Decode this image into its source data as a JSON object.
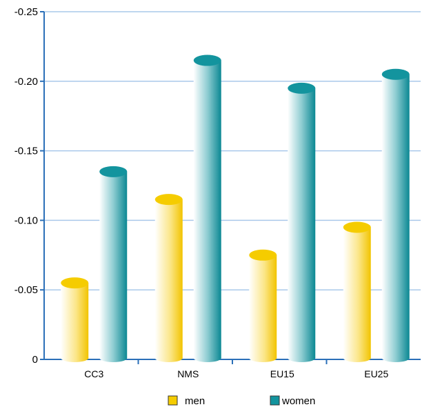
{
  "chart_data": {
    "type": "bar",
    "categories": [
      "CC3",
      "NMS",
      "EU15",
      "EU25"
    ],
    "series": [
      {
        "name": "men",
        "values": [
          -0.055,
          -0.115,
          -0.075,
          -0.095
        ]
      },
      {
        "name": "women",
        "values": [
          -0.135,
          -0.215,
          -0.195,
          -0.205
        ]
      }
    ],
    "yticks": [
      "0",
      "-0.05",
      "-0.10",
      "-0.15",
      "-0.20",
      "-0.25"
    ],
    "ytick_values": [
      0,
      -0.05,
      -0.1,
      -0.15,
      -0.2,
      -0.25
    ],
    "ylim": [
      0,
      -0.25
    ],
    "y_inverted": true,
    "grid": true,
    "legend_position": "bottom",
    "title": "",
    "xlabel": "",
    "ylabel": "",
    "colors": {
      "men": "#f5cc00",
      "women": "#13949e",
      "axis": "#2a6fb8",
      "grid": "#a9c8ea"
    }
  }
}
